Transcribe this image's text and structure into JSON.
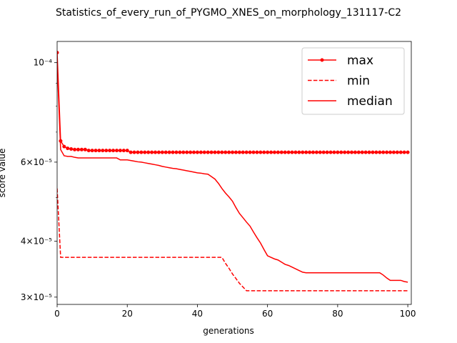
{
  "chart_data": {
    "type": "line",
    "title": "Statistics_of_every_run_of_PYGMO_XNES_on_morphology_131117-C2",
    "xlabel": "generations",
    "ylabel": "score value",
    "x": [
      0,
      1,
      2,
      3,
      4,
      5,
      6,
      7,
      8,
      9,
      10,
      11,
      12,
      13,
      14,
      15,
      16,
      17,
      18,
      19,
      20,
      21,
      22,
      23,
      24,
      25,
      26,
      27,
      28,
      29,
      30,
      31,
      32,
      33,
      34,
      35,
      36,
      37,
      38,
      39,
      40,
      41,
      42,
      43,
      44,
      45,
      46,
      47,
      48,
      49,
      50,
      51,
      52,
      53,
      54,
      55,
      56,
      57,
      58,
      59,
      60,
      61,
      62,
      63,
      64,
      65,
      66,
      67,
      68,
      69,
      70,
      71,
      72,
      73,
      74,
      75,
      76,
      77,
      78,
      79,
      80,
      81,
      82,
      83,
      84,
      85,
      86,
      87,
      88,
      89,
      90,
      91,
      92,
      93,
      94,
      95,
      96,
      97,
      98,
      99,
      100
    ],
    "series": [
      {
        "name": "max",
        "color": "#ff0000",
        "linestyle": "solid",
        "marker": "o",
        "values": [
          0.0001053,
          6.69e-05,
          6.5e-05,
          6.44e-05,
          6.42e-05,
          6.4e-05,
          6.4e-05,
          6.4e-05,
          6.4e-05,
          6.37e-05,
          6.37e-05,
          6.37e-05,
          6.37e-05,
          6.37e-05,
          6.37e-05,
          6.37e-05,
          6.37e-05,
          6.37e-05,
          6.37e-05,
          6.37e-05,
          6.37e-05,
          6.31e-05,
          6.31e-05,
          6.31e-05,
          6.31e-05,
          6.31e-05,
          6.31e-05,
          6.31e-05,
          6.31e-05,
          6.31e-05,
          6.31e-05,
          6.31e-05,
          6.31e-05,
          6.31e-05,
          6.31e-05,
          6.31e-05,
          6.31e-05,
          6.31e-05,
          6.31e-05,
          6.31e-05,
          6.31e-05,
          6.31e-05,
          6.31e-05,
          6.31e-05,
          6.31e-05,
          6.31e-05,
          6.31e-05,
          6.31e-05,
          6.31e-05,
          6.31e-05,
          6.31e-05,
          6.31e-05,
          6.31e-05,
          6.31e-05,
          6.31e-05,
          6.31e-05,
          6.31e-05,
          6.31e-05,
          6.31e-05,
          6.31e-05,
          6.31e-05,
          6.31e-05,
          6.31e-05,
          6.31e-05,
          6.31e-05,
          6.31e-05,
          6.31e-05,
          6.31e-05,
          6.31e-05,
          6.31e-05,
          6.31e-05,
          6.31e-05,
          6.31e-05,
          6.31e-05,
          6.31e-05,
          6.31e-05,
          6.31e-05,
          6.31e-05,
          6.31e-05,
          6.31e-05,
          6.31e-05,
          6.31e-05,
          6.31e-05,
          6.31e-05,
          6.31e-05,
          6.31e-05,
          6.31e-05,
          6.31e-05,
          6.31e-05,
          6.31e-05,
          6.31e-05,
          6.31e-05,
          6.31e-05,
          6.31e-05,
          6.31e-05,
          6.31e-05,
          6.31e-05,
          6.31e-05,
          6.31e-05,
          6.31e-05,
          6.31e-05
        ]
      },
      {
        "name": "min",
        "color": "#ff0000",
        "linestyle": "dashed",
        "values": [
          5.24e-05,
          3.68e-05,
          3.68e-05,
          3.68e-05,
          3.68e-05,
          3.68e-05,
          3.68e-05,
          3.68e-05,
          3.68e-05,
          3.68e-05,
          3.68e-05,
          3.68e-05,
          3.68e-05,
          3.68e-05,
          3.68e-05,
          3.68e-05,
          3.68e-05,
          3.68e-05,
          3.68e-05,
          3.68e-05,
          3.68e-05,
          3.68e-05,
          3.68e-05,
          3.68e-05,
          3.68e-05,
          3.68e-05,
          3.68e-05,
          3.68e-05,
          3.68e-05,
          3.68e-05,
          3.68e-05,
          3.68e-05,
          3.68e-05,
          3.68e-05,
          3.68e-05,
          3.68e-05,
          3.68e-05,
          3.68e-05,
          3.68e-05,
          3.68e-05,
          3.68e-05,
          3.68e-05,
          3.68e-05,
          3.68e-05,
          3.68e-05,
          3.68e-05,
          3.68e-05,
          3.68e-05,
          3.57e-05,
          3.48e-05,
          3.38e-05,
          3.3e-05,
          3.22e-05,
          3.16e-05,
          3.1e-05,
          3.1e-05,
          3.1e-05,
          3.1e-05,
          3.1e-05,
          3.1e-05,
          3.1e-05,
          3.1e-05,
          3.1e-05,
          3.1e-05,
          3.1e-05,
          3.1e-05,
          3.1e-05,
          3.1e-05,
          3.1e-05,
          3.1e-05,
          3.1e-05,
          3.1e-05,
          3.1e-05,
          3.1e-05,
          3.1e-05,
          3.1e-05,
          3.1e-05,
          3.1e-05,
          3.1e-05,
          3.1e-05,
          3.1e-05,
          3.1e-05,
          3.1e-05,
          3.1e-05,
          3.1e-05,
          3.1e-05,
          3.1e-05,
          3.1e-05,
          3.1e-05,
          3.1e-05,
          3.1e-05,
          3.1e-05,
          3.1e-05,
          3.1e-05,
          3.1e-05,
          3.1e-05,
          3.1e-05,
          3.1e-05,
          3.1e-05,
          3.1e-05,
          3.1e-05
        ]
      },
      {
        "name": "median",
        "color": "#ff0000",
        "linestyle": "solid",
        "values": [
          0.0001,
          6.4e-05,
          6.2e-05,
          6.18e-05,
          6.18e-05,
          6.15e-05,
          6.13e-05,
          6.13e-05,
          6.13e-05,
          6.13e-05,
          6.13e-05,
          6.13e-05,
          6.13e-05,
          6.13e-05,
          6.13e-05,
          6.13e-05,
          6.13e-05,
          6.13e-05,
          6.07e-05,
          6.07e-05,
          6.07e-05,
          6.05e-05,
          6.03e-05,
          6.01e-05,
          6e-05,
          5.98e-05,
          5.96e-05,
          5.94e-05,
          5.92e-05,
          5.9e-05,
          5.87e-05,
          5.85e-05,
          5.83e-05,
          5.81e-05,
          5.8e-05,
          5.78e-05,
          5.76e-05,
          5.74e-05,
          5.72e-05,
          5.7e-05,
          5.68e-05,
          5.67e-05,
          5.65e-05,
          5.64e-05,
          5.57e-05,
          5.5e-05,
          5.38e-05,
          5.24e-05,
          5.12e-05,
          5.02e-05,
          4.91e-05,
          4.75e-05,
          4.61e-05,
          4.51e-05,
          4.41e-05,
          4.32e-05,
          4.19e-05,
          4.07e-05,
          3.96e-05,
          3.83e-05,
          3.71e-05,
          3.68e-05,
          3.65e-05,
          3.63e-05,
          3.59e-05,
          3.55e-05,
          3.53e-05,
          3.5e-05,
          3.47e-05,
          3.44e-05,
          3.41e-05,
          3.4e-05,
          3.4e-05,
          3.4e-05,
          3.4e-05,
          3.4e-05,
          3.4e-05,
          3.4e-05,
          3.4e-05,
          3.4e-05,
          3.4e-05,
          3.4e-05,
          3.4e-05,
          3.4e-05,
          3.4e-05,
          3.4e-05,
          3.4e-05,
          3.4e-05,
          3.4e-05,
          3.4e-05,
          3.4e-05,
          3.4e-05,
          3.4e-05,
          3.36e-05,
          3.31e-05,
          3.27e-05,
          3.27e-05,
          3.27e-05,
          3.27e-05,
          3.25e-05,
          3.24e-05
        ]
      }
    ],
    "xlim": [
      0,
      101
    ],
    "xticks": [
      0,
      20,
      40,
      60,
      80,
      100
    ],
    "ylim": [
      2.89e-05,
      0.0001115
    ],
    "ylog": true,
    "yticks": [
      {
        "value": 0.0001,
        "label": "10⁻⁴"
      },
      {
        "value": 6e-05,
        "label": "6×10⁻⁵"
      },
      {
        "value": 4e-05,
        "label": "4×10⁻⁵"
      },
      {
        "value": 3e-05,
        "label": "3×10⁻⁵"
      }
    ],
    "yminorticks": [
      5e-05,
      7e-05,
      8e-05,
      9e-05
    ],
    "grid": false,
    "legend": "upper right"
  }
}
